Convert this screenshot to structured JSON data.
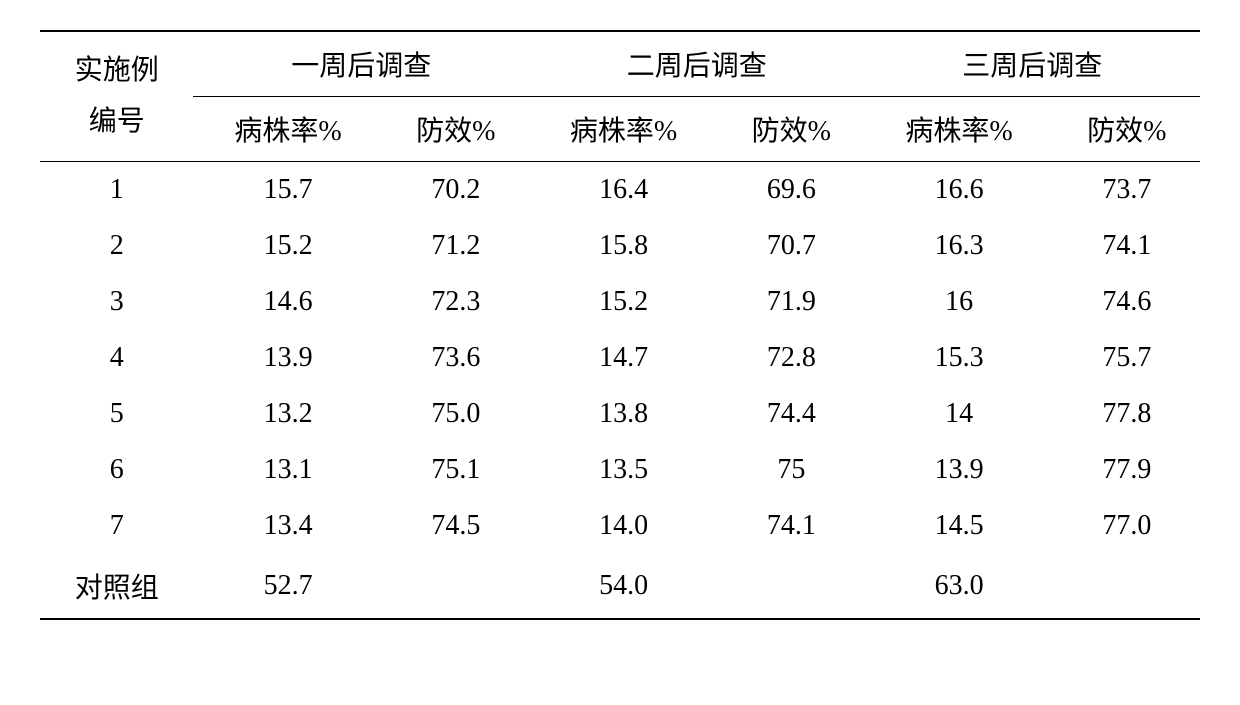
{
  "table": {
    "type": "table",
    "background_color": "#ffffff",
    "text_color": "#000000",
    "border_color": "#000000",
    "font_size": 28,
    "font_family": "SimSun",
    "header": {
      "row_label_line1": "实施例",
      "row_label_line2": "编号",
      "groups": [
        {
          "title": "一周后调查",
          "sub1": "病株率%",
          "sub2": "防效%"
        },
        {
          "title": "二周后调查",
          "sub1": "病株率%",
          "sub2": "防效%"
        },
        {
          "title": "三周后调查",
          "sub1": "病株率%",
          "sub2": "防效%"
        }
      ]
    },
    "rows": [
      {
        "label": "1",
        "cells": [
          "15.7",
          "70.2",
          "16.4",
          "69.6",
          "16.6",
          "73.7"
        ]
      },
      {
        "label": "2",
        "cells": [
          "15.2",
          "71.2",
          "15.8",
          "70.7",
          "16.3",
          "74.1"
        ]
      },
      {
        "label": "3",
        "cells": [
          "14.6",
          "72.3",
          "15.2",
          "71.9",
          "16",
          "74.6"
        ]
      },
      {
        "label": "4",
        "cells": [
          "13.9",
          "73.6",
          "14.7",
          "72.8",
          "15.3",
          "75.7"
        ]
      },
      {
        "label": "5",
        "cells": [
          "13.2",
          "75.0",
          "13.8",
          "74.4",
          "14",
          "77.8"
        ]
      },
      {
        "label": "6",
        "cells": [
          "13.1",
          "75.1",
          "13.5",
          "75",
          "13.9",
          "77.9"
        ]
      },
      {
        "label": "7",
        "cells": [
          "13.4",
          "74.5",
          "14.0",
          "74.1",
          "14.5",
          "77.0"
        ]
      },
      {
        "label": "对照组",
        "cells": [
          "52.7",
          "",
          "54.0",
          "",
          "63.0",
          ""
        ]
      }
    ]
  }
}
